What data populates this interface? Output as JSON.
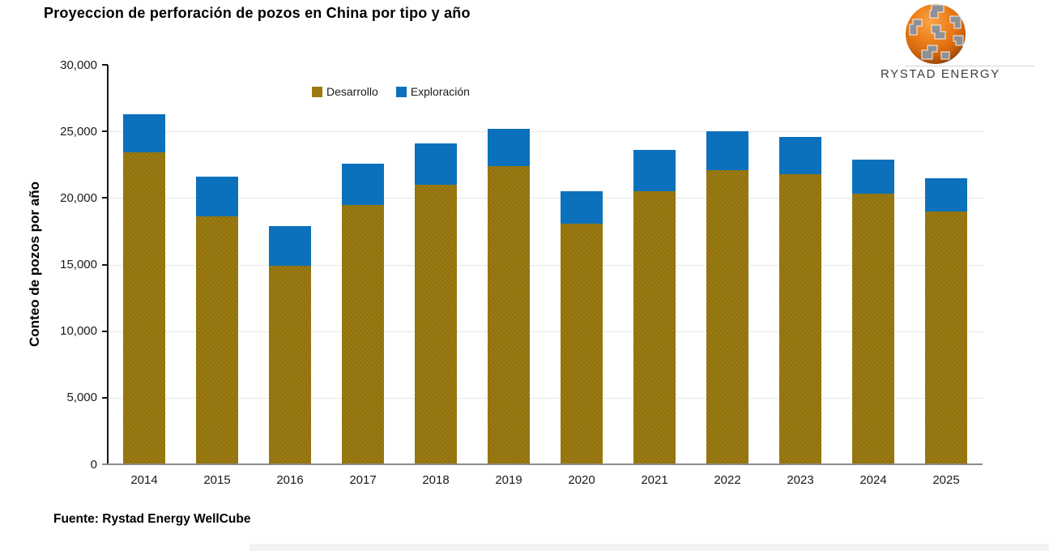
{
  "page": {
    "title": "Proyeccion de perforación de pozos en China por tipo y año",
    "source": "Fuente: Rystad Energy WellCube",
    "logo": {
      "wordmark": "RYSTAD ENERGY",
      "icon": "globe-icon"
    }
  },
  "chart_data": {
    "type": "bar",
    "stacked": true,
    "title": "Proyeccion de perforación de pozos en China por tipo y año",
    "categories": [
      "2014",
      "2015",
      "2016",
      "2017",
      "2018",
      "2019",
      "2020",
      "2021",
      "2022",
      "2023",
      "2024",
      "2025"
    ],
    "series": [
      {
        "name": "Desarrollo",
        "color": "#9C7B11",
        "texture": "crosshatch",
        "values": [
          23400,
          18600,
          14900,
          19500,
          21000,
          22400,
          18100,
          20500,
          22100,
          21800,
          20300,
          19000
        ]
      },
      {
        "name": "Exploración",
        "color": "#0B71BC",
        "texture": "solid",
        "values": [
          2900,
          3000,
          3000,
          3100,
          3100,
          2800,
          2400,
          3100,
          2900,
          2800,
          2600,
          2500
        ]
      }
    ],
    "totals": [
      26300,
      21600,
      17900,
      22600,
      24100,
      25200,
      20500,
      23600,
      25000,
      24600,
      22900,
      21500
    ],
    "xlabel": "",
    "ylabel": "Conteo de pozos por año",
    "ylim": [
      0,
      30000
    ],
    "ytick_step": 5000,
    "ytick_labels": [
      "0",
      "5,000",
      "10,000",
      "15,000",
      "20,000",
      "25,000",
      "30,000"
    ],
    "grid": "horizontal",
    "legend_position": "top-center-inside",
    "colors": {
      "axis_y": "#161616",
      "axis_x": "#8C8C8C",
      "gridline": "#E7E7E7",
      "text": "#1A1A1A"
    }
  }
}
